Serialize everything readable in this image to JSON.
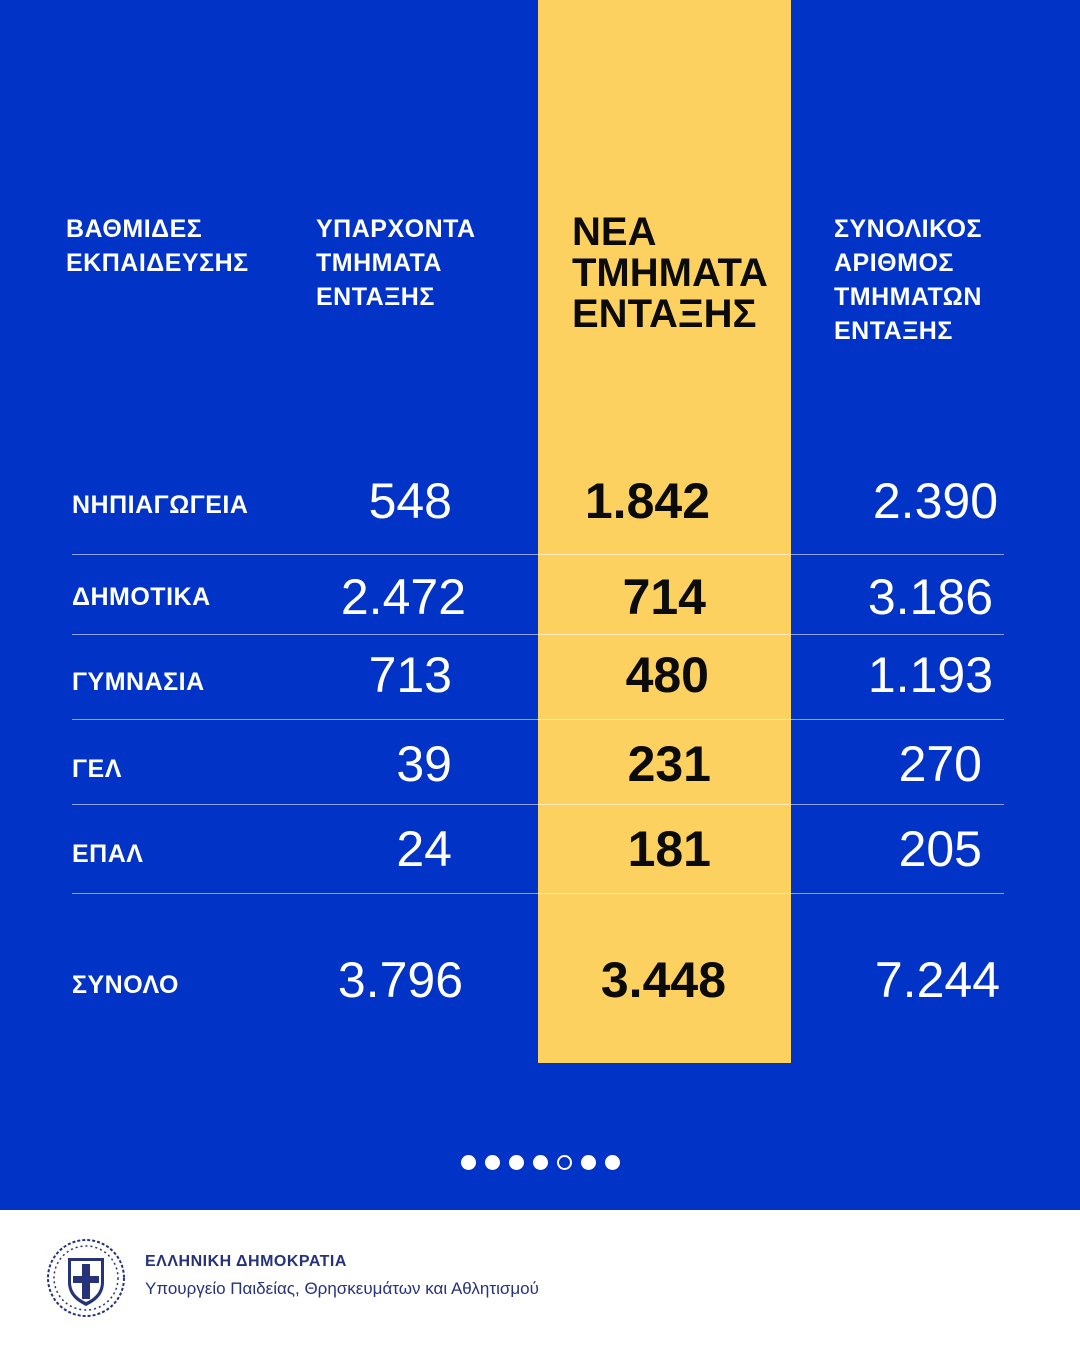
{
  "headers": {
    "levels": "ΒΑΘΜΙΔΕΣ\nΕΚΠΑΙΔΕΥΣΗΣ",
    "existing": "ΥΠΑΡΧΟΝΤΑ\nΤΜΗΜΑΤΑ\nΕΝΤΑΞΗΣ",
    "new": "ΝΕΑ\nΤΜΗΜΑΤΑ\nΕΝΤΑΞΗΣ",
    "total": "ΣΥΝΟΛΙΚΟΣ\nΑΡΙΘΜΟΣ\nΤΜΗΜΑΤΩΝ\nΕΝΤΑΞΗΣ"
  },
  "rows": [
    {
      "label": "ΝΗΠΙΑΓΩΓΕΙΑ",
      "existing": "548",
      "new": "1.842",
      "total": "2.390"
    },
    {
      "label": "ΔΗΜΟΤΙΚΑ",
      "existing": "2.472",
      "new": "714",
      "total": "3.186"
    },
    {
      "label": "ΓΥΜΝΑΣΙΑ",
      "existing": "713",
      "new": "480",
      "total": "1.193"
    },
    {
      "label": "ΓΕΛ",
      "existing": "39",
      "new": "231",
      "total": "270"
    },
    {
      "label": "ΕΠΑΛ",
      "existing": "24",
      "new": "181",
      "total": "205"
    }
  ],
  "summary": {
    "label": "ΣΥΝΟΛΟ",
    "existing": "3.796",
    "new": "3.448",
    "total": "7.244"
  },
  "pagination": {
    "count": 7,
    "active_index": 4
  },
  "footer": {
    "title": "ΕΛΛΗΝΙΚΗ ΔΗΜΟΚΡΑΤΙΑ",
    "subtitle": "Υπουργείο Παιδείας, Θρησκευμάτων και Αθλητισμού"
  },
  "colors": {
    "background": "#0033c6",
    "highlight": "#fdd15f",
    "footer_text": "#26327a"
  }
}
